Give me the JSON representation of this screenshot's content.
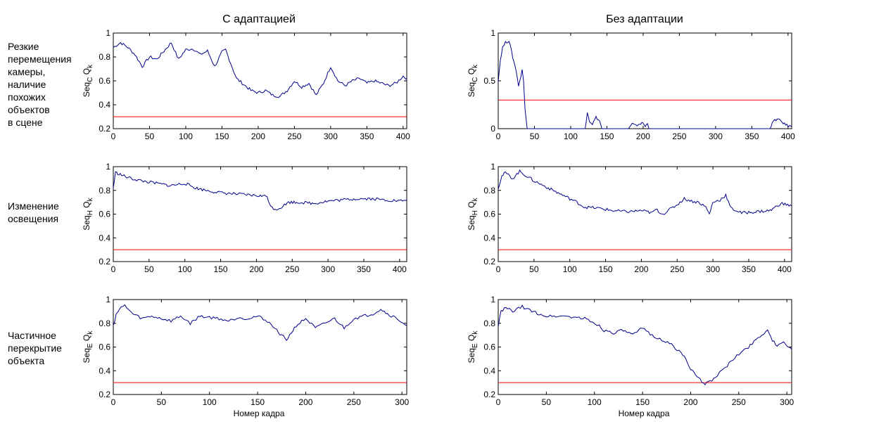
{
  "column_titles": [
    "С адаптацией",
    "Без адаптации"
  ],
  "row_labels": [
    [
      "Резкие",
      "перемещения",
      "камеры,",
      "наличие",
      "похожих",
      "объектов",
      "в сцене"
    ],
    [
      "Изменение",
      "освещения"
    ],
    [
      "Частичное",
      "перекрытие",
      "объекта"
    ]
  ],
  "xlabel": "Номер кадра",
  "colors": {
    "series": "#00008b",
    "threshold": "#ff0000",
    "axes": "#000000"
  },
  "chart_data": [
    {
      "type": "line",
      "row": 0,
      "col": 0,
      "ylabel": {
        "main": "Seq",
        "sub": "C",
        "q": "Q",
        "k": "k"
      },
      "xlim": [
        0,
        405
      ],
      "ylim": [
        0.2,
        1
      ],
      "xticks": [
        0,
        50,
        100,
        150,
        200,
        250,
        300,
        350,
        400
      ],
      "yticks": [
        0.2,
        0.4,
        0.6,
        0.8,
        1
      ],
      "threshold": 0.3,
      "x": [
        0,
        10,
        20,
        30,
        40,
        50,
        60,
        70,
        80,
        90,
        100,
        110,
        120,
        130,
        140,
        150,
        155,
        160,
        170,
        180,
        190,
        200,
        210,
        220,
        230,
        240,
        250,
        260,
        270,
        280,
        290,
        300,
        310,
        320,
        330,
        340,
        350,
        360,
        370,
        380,
        390,
        400,
        405
      ],
      "y": [
        0.88,
        0.92,
        0.88,
        0.82,
        0.72,
        0.8,
        0.78,
        0.85,
        0.92,
        0.78,
        0.86,
        0.87,
        0.82,
        0.85,
        0.72,
        0.84,
        0.86,
        0.78,
        0.62,
        0.57,
        0.52,
        0.5,
        0.52,
        0.48,
        0.47,
        0.52,
        0.6,
        0.55,
        0.58,
        0.48,
        0.58,
        0.72,
        0.6,
        0.56,
        0.6,
        0.62,
        0.58,
        0.6,
        0.58,
        0.56,
        0.58,
        0.64,
        0.62
      ]
    },
    {
      "type": "line",
      "row": 0,
      "col": 1,
      "ylabel": {
        "main": "Seq",
        "sub": "C",
        "q": "Q",
        "k": "k"
      },
      "xlim": [
        0,
        405
      ],
      "ylim": [
        0,
        1
      ],
      "xticks": [
        0,
        50,
        100,
        150,
        200,
        250,
        300,
        350,
        400
      ],
      "yticks": [
        0,
        0.5,
        1
      ],
      "threshold": 0.3,
      "x": [
        0,
        3,
        6,
        10,
        15,
        20,
        25,
        28,
        30,
        33,
        35,
        37,
        40,
        120,
        123,
        126,
        130,
        135,
        140,
        143,
        180,
        185,
        190,
        195,
        200,
        203,
        206,
        208,
        375,
        380,
        385,
        390,
        395,
        400,
        405
      ],
      "y": [
        0.5,
        0.72,
        0.85,
        0.9,
        0.92,
        0.75,
        0.6,
        0.45,
        0.5,
        0.62,
        0.5,
        0.2,
        0,
        0,
        0.18,
        0.08,
        0.05,
        0.12,
        0.08,
        0,
        0,
        0.05,
        0.03,
        0.05,
        0.06,
        0.02,
        0.06,
        0,
        0,
        0.08,
        0.1,
        0.08,
        0.05,
        0.03,
        0.02
      ]
    },
    {
      "type": "line",
      "row": 1,
      "col": 0,
      "ylabel": {
        "main": "Seq",
        "sub": "H",
        "q": "Q",
        "k": "k"
      },
      "xlim": [
        0,
        410
      ],
      "ylim": [
        0.2,
        1
      ],
      "xticks": [
        0,
        50,
        100,
        150,
        200,
        250,
        300,
        350,
        400
      ],
      "yticks": [
        0.2,
        0.4,
        0.6,
        0.8,
        1
      ],
      "threshold": 0.3,
      "x": [
        0,
        3,
        8,
        15,
        25,
        40,
        60,
        80,
        100,
        115,
        130,
        150,
        170,
        190,
        215,
        220,
        228,
        235,
        245,
        260,
        280,
        300,
        320,
        340,
        360,
        380,
        400,
        410
      ],
      "y": [
        0.82,
        0.95,
        0.94,
        0.92,
        0.9,
        0.88,
        0.86,
        0.84,
        0.86,
        0.82,
        0.8,
        0.78,
        0.77,
        0.76,
        0.75,
        0.66,
        0.64,
        0.66,
        0.7,
        0.7,
        0.69,
        0.71,
        0.72,
        0.73,
        0.73,
        0.72,
        0.71,
        0.72
      ]
    },
    {
      "type": "line",
      "row": 1,
      "col": 1,
      "ylabel": {
        "main": "Seq",
        "sub": "H",
        "q": "Q",
        "k": "k"
      },
      "xlim": [
        0,
        410
      ],
      "ylim": [
        0.2,
        1
      ],
      "xticks": [
        0,
        50,
        100,
        150,
        200,
        250,
        300,
        350,
        400
      ],
      "yticks": [
        0.2,
        0.4,
        0.6,
        0.8,
        1
      ],
      "threshold": 0.3,
      "x": [
        0,
        5,
        10,
        20,
        30,
        40,
        50,
        70,
        90,
        110,
        120,
        140,
        160,
        180,
        200,
        215,
        220,
        230,
        240,
        250,
        260,
        270,
        280,
        290,
        295,
        300,
        310,
        318,
        325,
        340,
        360,
        380,
        395,
        410
      ],
      "y": [
        0.82,
        0.92,
        0.95,
        0.9,
        0.96,
        0.92,
        0.88,
        0.82,
        0.76,
        0.7,
        0.66,
        0.65,
        0.63,
        0.62,
        0.63,
        0.61,
        0.64,
        0.6,
        0.64,
        0.68,
        0.73,
        0.71,
        0.7,
        0.66,
        0.6,
        0.7,
        0.72,
        0.76,
        0.65,
        0.61,
        0.62,
        0.63,
        0.69,
        0.67
      ]
    },
    {
      "type": "line",
      "row": 2,
      "col": 0,
      "ylabel": {
        "main": "Seq",
        "sub": "E",
        "q": "Q",
        "k": "k"
      },
      "xlim": [
        0,
        305
      ],
      "ylim": [
        0.2,
        1
      ],
      "xticks": [
        0,
        50,
        100,
        150,
        200,
        250,
        300
      ],
      "yticks": [
        0.2,
        0.4,
        0.6,
        0.8,
        1
      ],
      "threshold": 0.3,
      "x": [
        0,
        3,
        8,
        12,
        20,
        30,
        40,
        50,
        60,
        70,
        80,
        90,
        100,
        110,
        120,
        130,
        140,
        150,
        160,
        170,
        175,
        180,
        185,
        190,
        200,
        210,
        220,
        230,
        240,
        250,
        260,
        270,
        278,
        285,
        295,
        305
      ],
      "y": [
        0.78,
        0.88,
        0.93,
        0.95,
        0.88,
        0.84,
        0.86,
        0.84,
        0.82,
        0.86,
        0.8,
        0.86,
        0.85,
        0.84,
        0.82,
        0.85,
        0.84,
        0.86,
        0.82,
        0.74,
        0.7,
        0.66,
        0.72,
        0.78,
        0.84,
        0.76,
        0.8,
        0.84,
        0.76,
        0.84,
        0.86,
        0.88,
        0.92,
        0.88,
        0.84,
        0.78
      ]
    },
    {
      "type": "line",
      "row": 2,
      "col": 1,
      "ylabel": {
        "main": "Seq",
        "sub": "E",
        "q": "Q",
        "k": "k"
      },
      "xlim": [
        0,
        305
      ],
      "ylim": [
        0.2,
        1
      ],
      "xticks": [
        0,
        50,
        100,
        150,
        200,
        250,
        300
      ],
      "yticks": [
        0.2,
        0.4,
        0.6,
        0.8,
        1
      ],
      "threshold": 0.3,
      "x": [
        0,
        3,
        8,
        15,
        25,
        35,
        50,
        70,
        90,
        105,
        110,
        120,
        130,
        140,
        150,
        160,
        170,
        180,
        190,
        195,
        200,
        205,
        210,
        215,
        220,
        230,
        240,
        250,
        260,
        270,
        280,
        285,
        290,
        295,
        300,
        305
      ],
      "y": [
        0.78,
        0.9,
        0.93,
        0.9,
        0.94,
        0.9,
        0.86,
        0.86,
        0.84,
        0.78,
        0.74,
        0.72,
        0.74,
        0.7,
        0.76,
        0.7,
        0.66,
        0.62,
        0.55,
        0.5,
        0.42,
        0.36,
        0.32,
        0.29,
        0.31,
        0.38,
        0.46,
        0.54,
        0.6,
        0.68,
        0.74,
        0.66,
        0.6,
        0.64,
        0.62,
        0.58
      ]
    }
  ]
}
